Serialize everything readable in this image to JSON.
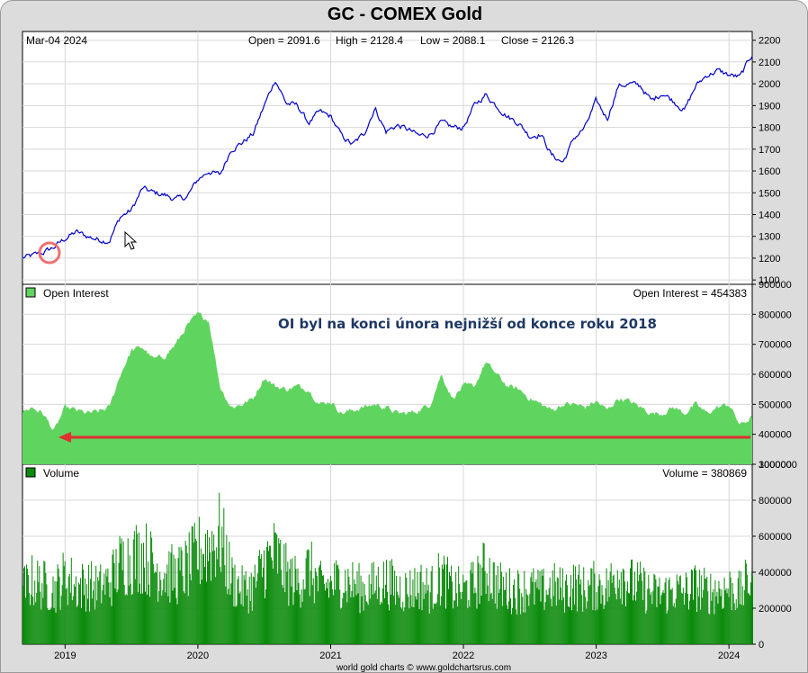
{
  "title": "GC - COMEX Gold",
  "header": {
    "date": "Mar-04  2024",
    "open": "Open = 2091.6",
    "high": "High = 2128.4",
    "low": "Low = 2088.1",
    "close": "Close = 2126.3"
  },
  "oi_panel": {
    "label": "Open Interest",
    "value_text": "Open Interest = 454383"
  },
  "volume_panel": {
    "label": "Volume",
    "value_text": "Volume = 380869"
  },
  "annotation": "OI byl na konci února nejnižší od konce roku 2018",
  "credit": "world gold charts © www.goldchartsrus.com",
  "colors": {
    "price": "#0000cc",
    "oi": "#5fd45f",
    "volume": "#0a8a0a",
    "arrow": "#e03030",
    "circle": "#f07070"
  },
  "chart_data": [
    {
      "type": "line",
      "title": "GC - COMEX Gold",
      "ylabel": "",
      "ylim": [
        1080,
        2240
      ],
      "yticks": [
        1100,
        1200,
        1300,
        1400,
        1500,
        1600,
        1700,
        1800,
        1900,
        2000,
        2100,
        2200
      ],
      "x": [
        "2018-09",
        "2018-10",
        "2018-11",
        "2018-12",
        "2019-01",
        "2019-02",
        "2019-03",
        "2019-04",
        "2019-05",
        "2019-06",
        "2019-07",
        "2019-08",
        "2019-09",
        "2019-10",
        "2019-11",
        "2019-12",
        "2020-01",
        "2020-02",
        "2020-03",
        "2020-04",
        "2020-05",
        "2020-06",
        "2020-07",
        "2020-08",
        "2020-09",
        "2020-10",
        "2020-11",
        "2020-12",
        "2021-01",
        "2021-02",
        "2021-03",
        "2021-04",
        "2021-05",
        "2021-06",
        "2021-07",
        "2021-08",
        "2021-09",
        "2021-10",
        "2021-11",
        "2021-12",
        "2022-01",
        "2022-02",
        "2022-03",
        "2022-04",
        "2022-05",
        "2022-06",
        "2022-07",
        "2022-08",
        "2022-09",
        "2022-10",
        "2022-11",
        "2022-12",
        "2023-01",
        "2023-02",
        "2023-03",
        "2023-04",
        "2023-05",
        "2023-06",
        "2023-07",
        "2023-08",
        "2023-09",
        "2023-10",
        "2023-11",
        "2023-12",
        "2024-01",
        "2024-02",
        "2024-03"
      ],
      "series": [
        {
          "values": [
            1200,
            1210,
            1225,
            1250,
            1290,
            1320,
            1300,
            1285,
            1280,
            1390,
            1420,
            1520,
            1500,
            1490,
            1470,
            1480,
            1560,
            1600,
            1580,
            1700,
            1730,
            1770,
            1900,
            2020,
            1910,
            1900,
            1820,
            1870,
            1850,
            1760,
            1720,
            1770,
            1890,
            1780,
            1810,
            1790,
            1760,
            1770,
            1820,
            1800,
            1800,
            1900,
            1950,
            1900,
            1850,
            1820,
            1760,
            1770,
            1670,
            1640,
            1750,
            1800,
            1920,
            1840,
            1990,
            2000,
            1990,
            1920,
            1960,
            1920,
            1880,
            1990,
            2040,
            2060,
            2040,
            2030,
            2126.3
          ]
        }
      ]
    },
    {
      "type": "area",
      "title": "Open Interest",
      "ylim": [
        300000,
        900000
      ],
      "yticks": [
        300000,
        400000,
        500000,
        600000,
        700000,
        800000,
        900000
      ],
      "x": [
        "2018-09",
        "2018-10",
        "2018-11",
        "2018-12",
        "2019-01",
        "2019-02",
        "2019-03",
        "2019-04",
        "2019-05",
        "2019-06",
        "2019-07",
        "2019-08",
        "2019-09",
        "2019-10",
        "2019-11",
        "2019-12",
        "2020-01",
        "2020-02",
        "2020-03",
        "2020-04",
        "2020-05",
        "2020-06",
        "2020-07",
        "2020-08",
        "2020-09",
        "2020-10",
        "2020-11",
        "2020-12",
        "2021-01",
        "2021-02",
        "2021-03",
        "2021-04",
        "2021-05",
        "2021-06",
        "2021-07",
        "2021-08",
        "2021-09",
        "2021-10",
        "2021-11",
        "2021-12",
        "2022-01",
        "2022-02",
        "2022-03",
        "2022-04",
        "2022-05",
        "2022-06",
        "2022-07",
        "2022-08",
        "2022-09",
        "2022-10",
        "2022-11",
        "2022-12",
        "2023-01",
        "2023-02",
        "2023-03",
        "2023-04",
        "2023-05",
        "2023-06",
        "2023-07",
        "2023-08",
        "2023-09",
        "2023-10",
        "2023-11",
        "2023-12",
        "2024-01",
        "2024-02",
        "2024-03"
      ],
      "series": [
        {
          "values": [
            470000,
            490000,
            470000,
            410000,
            490000,
            480000,
            470000,
            475000,
            490000,
            600000,
            680000,
            690000,
            650000,
            660000,
            700000,
            760000,
            800000,
            780000,
            560000,
            490000,
            500000,
            520000,
            590000,
            560000,
            550000,
            560000,
            550000,
            500000,
            510000,
            470000,
            480000,
            490000,
            500000,
            490000,
            470000,
            470000,
            480000,
            500000,
            600000,
            520000,
            560000,
            560000,
            640000,
            600000,
            560000,
            550000,
            520000,
            500000,
            480000,
            500000,
            500000,
            490000,
            510000,
            480000,
            520000,
            510000,
            490000,
            470000,
            470000,
            490000,
            470000,
            500000,
            470000,
            490000,
            500000,
            430000,
            454383
          ]
        }
      ]
    },
    {
      "type": "bar",
      "title": "Volume",
      "ylim": [
        0,
        1000000
      ],
      "yticks": [
        0,
        200000,
        400000,
        600000,
        800000,
        1000000
      ],
      "x": [
        "2018-09",
        "2018-10",
        "2018-11",
        "2018-12",
        "2019-01",
        "2019-02",
        "2019-03",
        "2019-04",
        "2019-05",
        "2019-06",
        "2019-07",
        "2019-08",
        "2019-09",
        "2019-10",
        "2019-11",
        "2019-12",
        "2020-01",
        "2020-02",
        "2020-03",
        "2020-04",
        "2020-05",
        "2020-06",
        "2020-07",
        "2020-08",
        "2020-09",
        "2020-10",
        "2020-11",
        "2020-12",
        "2021-01",
        "2021-02",
        "2021-03",
        "2021-04",
        "2021-05",
        "2021-06",
        "2021-07",
        "2021-08",
        "2021-09",
        "2021-10",
        "2021-11",
        "2021-12",
        "2022-01",
        "2022-02",
        "2022-03",
        "2022-04",
        "2022-05",
        "2022-06",
        "2022-07",
        "2022-08",
        "2022-09",
        "2022-10",
        "2022-11",
        "2022-12",
        "2023-01",
        "2023-02",
        "2023-03",
        "2023-04",
        "2023-05",
        "2023-06",
        "2023-07",
        "2023-08",
        "2023-09",
        "2023-10",
        "2023-11",
        "2023-12",
        "2024-01",
        "2024-02",
        "2024-03"
      ],
      "series": [
        {
          "values": [
            300000,
            350000,
            330000,
            300000,
            380000,
            320000,
            330000,
            310000,
            350000,
            450000,
            480000,
            500000,
            430000,
            400000,
            380000,
            420000,
            500000,
            550000,
            600000,
            360000,
            300000,
            320000,
            450000,
            500000,
            380000,
            340000,
            420000,
            320000,
            330000,
            360000,
            330000,
            300000,
            330000,
            350000,
            310000,
            300000,
            330000,
            300000,
            380000,
            300000,
            300000,
            330000,
            420000,
            330000,
            300000,
            300000,
            310000,
            290000,
            320000,
            300000,
            330000,
            300000,
            330000,
            310000,
            420000,
            340000,
            320000,
            280000,
            280000,
            300000,
            290000,
            320000,
            290000,
            300000,
            310000,
            280000,
            380869
          ]
        }
      ]
    }
  ],
  "x_axis": {
    "labels": [
      "2019",
      "2020",
      "2021",
      "2022",
      "2023",
      "2024"
    ]
  }
}
